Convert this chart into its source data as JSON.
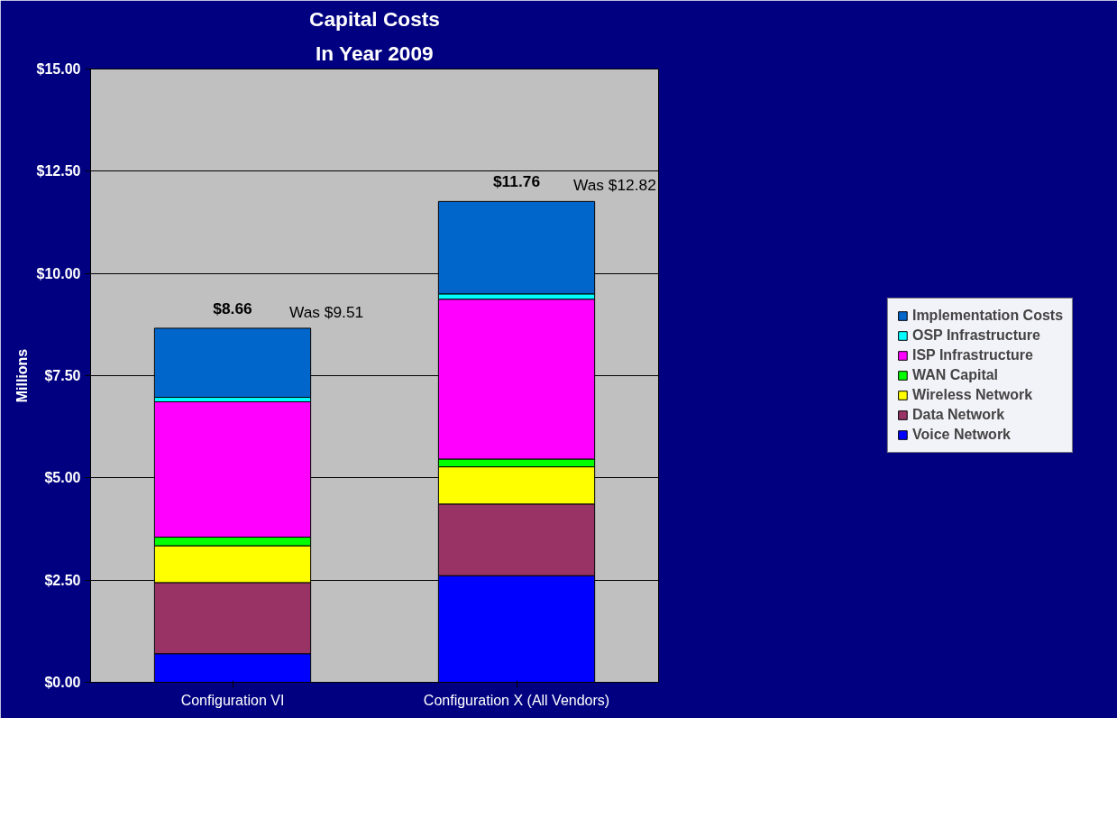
{
  "chart_data": {
    "type": "bar",
    "title": "Capital Costs",
    "subtitle": "In Year 2009",
    "ylabel": "Millions",
    "categories": [
      "Configuration VI",
      "Configuration X (All Vendors)"
    ],
    "stacked": true,
    "series": [
      {
        "name": "Voice Network",
        "color": "#0000ff",
        "values": [
          0.7,
          2.61
        ]
      },
      {
        "name": "Data Network",
        "color": "#993366",
        "values": [
          1.74,
          1.75
        ]
      },
      {
        "name": "Wireless Network",
        "color": "#ffff00",
        "values": [
          0.9,
          0.91
        ]
      },
      {
        "name": "WAN Capital",
        "color": "#00ff00",
        "values": [
          0.21,
          0.19
        ]
      },
      {
        "name": "ISP Infrastructure",
        "color": "#ff00ff",
        "values": [
          3.31,
          3.91
        ]
      },
      {
        "name": "OSP Infrastructure",
        "color": "#00ffff",
        "values": [
          0.11,
          0.13
        ]
      },
      {
        "name": "Implementation Costs",
        "color": "#0066cc",
        "values": [
          1.69,
          2.26
        ]
      }
    ],
    "totals": [
      "$8.66",
      "$11.76"
    ],
    "annotations": [
      "Was $9.51",
      "Was $12.82"
    ],
    "ylim": [
      0,
      15
    ],
    "yticks": [
      {
        "value": 0,
        "label": "$0.00"
      },
      {
        "value": 2.5,
        "label": "$2.50"
      },
      {
        "value": 5,
        "label": "$5.00"
      },
      {
        "value": 7.5,
        "label": "$7.50"
      },
      {
        "value": 10,
        "label": "$10.00"
      },
      {
        "value": 12.5,
        "label": "$12.50"
      },
      {
        "value": 15,
        "label": "$15.00"
      }
    ],
    "grid": "y",
    "legend": "right"
  }
}
